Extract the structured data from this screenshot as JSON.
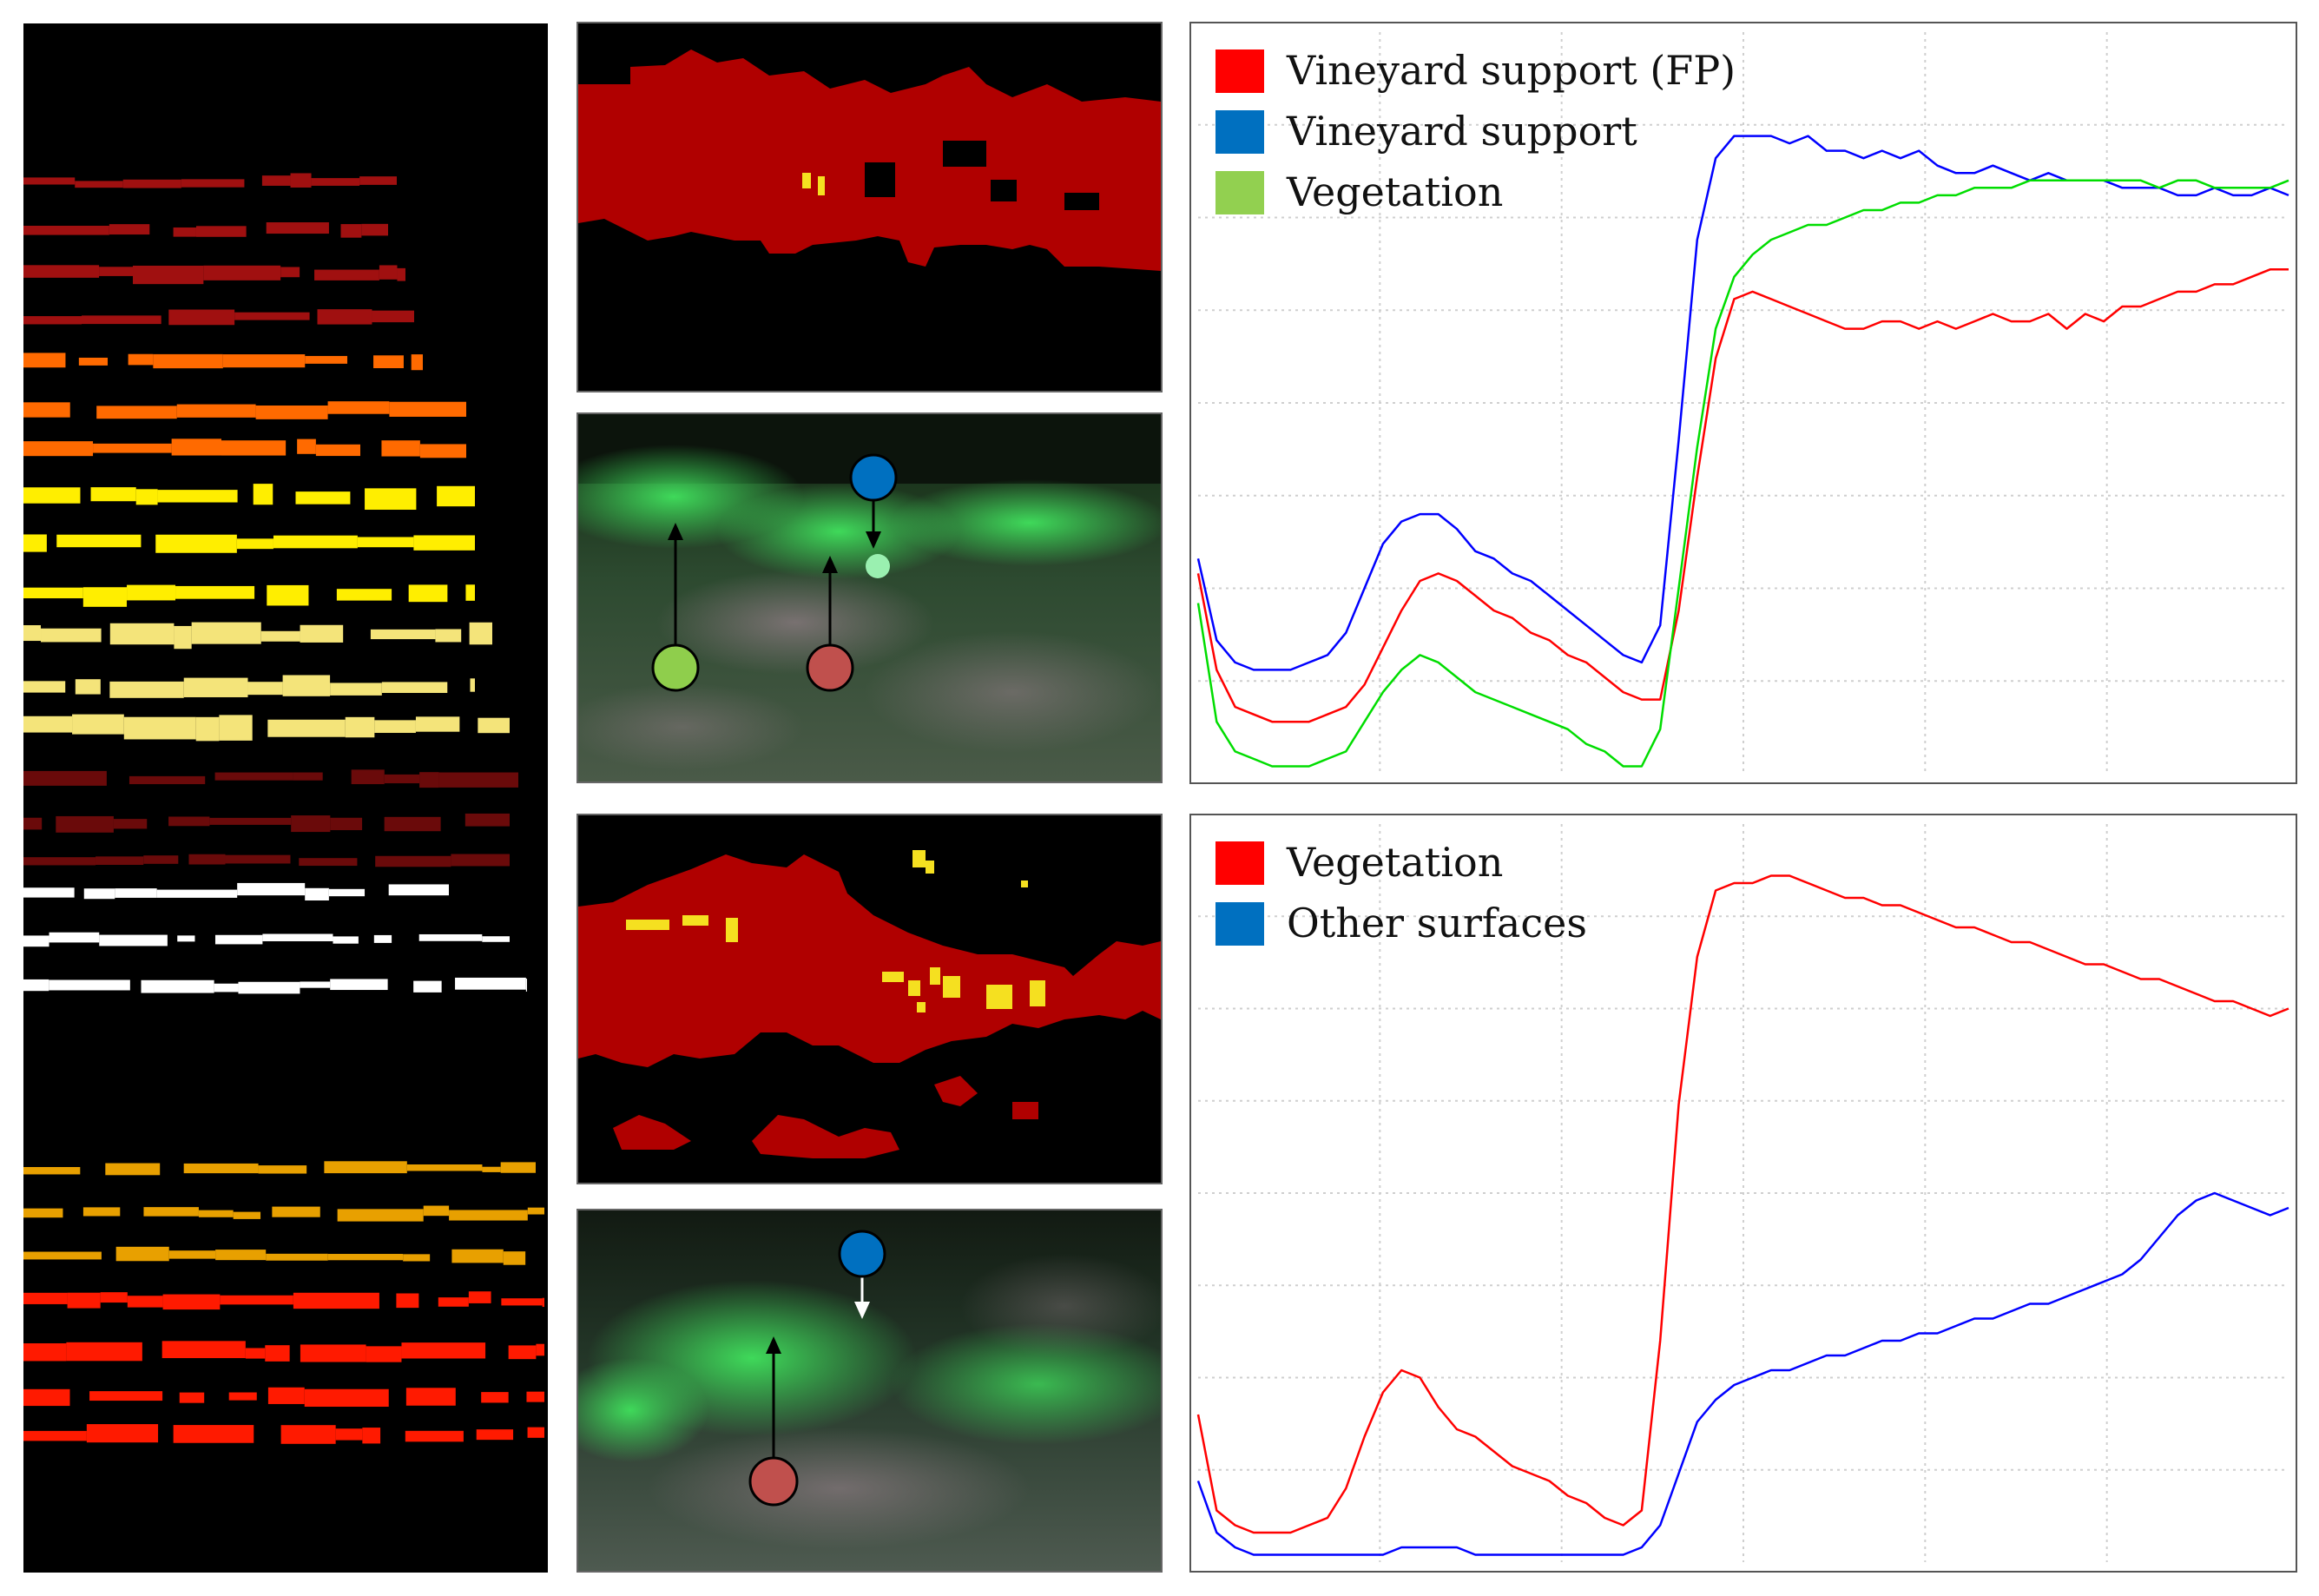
{
  "figure": {
    "panels": [
      "Vineyard row classification map",
      "Classification mask (top)",
      "RGB detail (top)",
      "Classification mask (bottom)",
      "RGB detail (bottom)"
    ]
  },
  "rgb_markers": {
    "top": [
      {
        "color": "#8fce4c",
        "label": "Vegetation"
      },
      {
        "color": "#c0504d",
        "label": "Vineyard support (FP)"
      },
      {
        "color": "#0070c0",
        "label": "Vineyard support"
      }
    ],
    "bottom": [
      {
        "color": "#c0504d",
        "label": "Vegetation"
      },
      {
        "color": "#0070c0",
        "label": "Other surfaces"
      }
    ]
  },
  "chart_data": [
    {
      "type": "line",
      "title": "",
      "xlabel": "",
      "ylabel": "",
      "x": [
        0,
        1,
        2,
        3,
        4,
        5,
        6,
        7,
        8,
        9,
        10,
        11,
        12,
        13,
        14,
        15,
        16,
        17,
        18,
        19,
        20,
        21,
        22,
        23,
        24,
        25,
        26,
        27,
        28,
        29,
        30,
        31,
        32,
        33,
        34,
        35,
        36,
        37,
        38,
        39,
        40,
        41,
        42,
        43,
        44,
        45,
        46,
        47,
        48,
        49,
        50,
        51,
        52,
        53,
        54,
        55,
        56,
        57,
        58,
        59
      ],
      "xlim": [
        0,
        59
      ],
      "ylim": [
        0,
        1
      ],
      "grid": true,
      "legend_position": "top-left",
      "series": [
        {
          "name": "Vineyard support (FP)",
          "color": "#ff0000",
          "values": [
            0.27,
            0.14,
            0.09,
            0.08,
            0.07,
            0.07,
            0.07,
            0.08,
            0.09,
            0.12,
            0.17,
            0.22,
            0.26,
            0.27,
            0.26,
            0.24,
            0.22,
            0.21,
            0.19,
            0.18,
            0.16,
            0.15,
            0.13,
            0.11,
            0.1,
            0.1,
            0.22,
            0.4,
            0.56,
            0.64,
            0.65,
            0.64,
            0.63,
            0.62,
            0.61,
            0.6,
            0.6,
            0.61,
            0.61,
            0.6,
            0.61,
            0.6,
            0.61,
            0.62,
            0.61,
            0.61,
            0.62,
            0.6,
            0.62,
            0.61,
            0.63,
            0.63,
            0.64,
            0.65,
            0.65,
            0.66,
            0.66,
            0.67,
            0.68,
            0.68
          ]
        },
        {
          "name": "Vineyard support",
          "color": "#0000ff",
          "values": [
            0.29,
            0.18,
            0.15,
            0.14,
            0.14,
            0.14,
            0.15,
            0.16,
            0.19,
            0.25,
            0.31,
            0.34,
            0.35,
            0.35,
            0.33,
            0.3,
            0.29,
            0.27,
            0.26,
            0.24,
            0.22,
            0.2,
            0.18,
            0.16,
            0.15,
            0.2,
            0.45,
            0.72,
            0.83,
            0.86,
            0.86,
            0.86,
            0.85,
            0.86,
            0.84,
            0.84,
            0.83,
            0.84,
            0.83,
            0.84,
            0.82,
            0.81,
            0.81,
            0.82,
            0.81,
            0.8,
            0.81,
            0.8,
            0.8,
            0.8,
            0.79,
            0.79,
            0.79,
            0.78,
            0.78,
            0.79,
            0.78,
            0.78,
            0.79,
            0.78
          ]
        },
        {
          "name": "Vegetation",
          "color": "#00dd00",
          "values": [
            0.23,
            0.07,
            0.03,
            0.02,
            0.01,
            0.01,
            0.01,
            0.02,
            0.03,
            0.07,
            0.11,
            0.14,
            0.16,
            0.15,
            0.13,
            0.11,
            0.1,
            0.09,
            0.08,
            0.07,
            0.06,
            0.04,
            0.03,
            0.01,
            0.01,
            0.06,
            0.25,
            0.44,
            0.6,
            0.67,
            0.7,
            0.72,
            0.73,
            0.74,
            0.74,
            0.75,
            0.76,
            0.76,
            0.77,
            0.77,
            0.78,
            0.78,
            0.79,
            0.79,
            0.79,
            0.8,
            0.8,
            0.8,
            0.8,
            0.8,
            0.8,
            0.8,
            0.79,
            0.8,
            0.8,
            0.79,
            0.79,
            0.79,
            0.79,
            0.8
          ]
        }
      ]
    },
    {
      "type": "line",
      "title": "",
      "xlabel": "",
      "ylabel": "",
      "x": [
        0,
        1,
        2,
        3,
        4,
        5,
        6,
        7,
        8,
        9,
        10,
        11,
        12,
        13,
        14,
        15,
        16,
        17,
        18,
        19,
        20,
        21,
        22,
        23,
        24,
        25,
        26,
        27,
        28,
        29,
        30,
        31,
        32,
        33,
        34,
        35,
        36,
        37,
        38,
        39,
        40,
        41,
        42,
        43,
        44,
        45,
        46,
        47,
        48,
        49,
        50,
        51,
        52,
        53,
        54,
        55,
        56,
        57,
        58,
        59
      ],
      "xlim": [
        0,
        59
      ],
      "ylim": [
        0,
        1
      ],
      "grid": true,
      "legend_position": "top-left",
      "series": [
        {
          "name": "Vegetation",
          "color": "#ff0000",
          "values": [
            0.2,
            0.07,
            0.05,
            0.04,
            0.04,
            0.04,
            0.05,
            0.06,
            0.1,
            0.17,
            0.23,
            0.26,
            0.25,
            0.21,
            0.18,
            0.17,
            0.15,
            0.13,
            0.12,
            0.11,
            0.09,
            0.08,
            0.06,
            0.05,
            0.07,
            0.3,
            0.62,
            0.82,
            0.91,
            0.92,
            0.92,
            0.93,
            0.93,
            0.92,
            0.91,
            0.9,
            0.9,
            0.89,
            0.89,
            0.88,
            0.87,
            0.86,
            0.86,
            0.85,
            0.84,
            0.84,
            0.83,
            0.82,
            0.81,
            0.81,
            0.8,
            0.79,
            0.79,
            0.78,
            0.77,
            0.76,
            0.76,
            0.75,
            0.74,
            0.75
          ]
        },
        {
          "name": "Other surfaces",
          "color": "#0000ff",
          "values": [
            0.11,
            0.04,
            0.02,
            0.01,
            0.01,
            0.01,
            0.01,
            0.01,
            0.01,
            0.01,
            0.01,
            0.02,
            0.02,
            0.02,
            0.02,
            0.01,
            0.01,
            0.01,
            0.01,
            0.01,
            0.01,
            0.01,
            0.01,
            0.01,
            0.02,
            0.05,
            0.12,
            0.19,
            0.22,
            0.24,
            0.25,
            0.26,
            0.26,
            0.27,
            0.28,
            0.28,
            0.29,
            0.3,
            0.3,
            0.31,
            0.31,
            0.32,
            0.33,
            0.33,
            0.34,
            0.35,
            0.35,
            0.36,
            0.37,
            0.38,
            0.39,
            0.41,
            0.44,
            0.47,
            0.49,
            0.5,
            0.49,
            0.48,
            0.47,
            0.48
          ]
        }
      ]
    }
  ]
}
